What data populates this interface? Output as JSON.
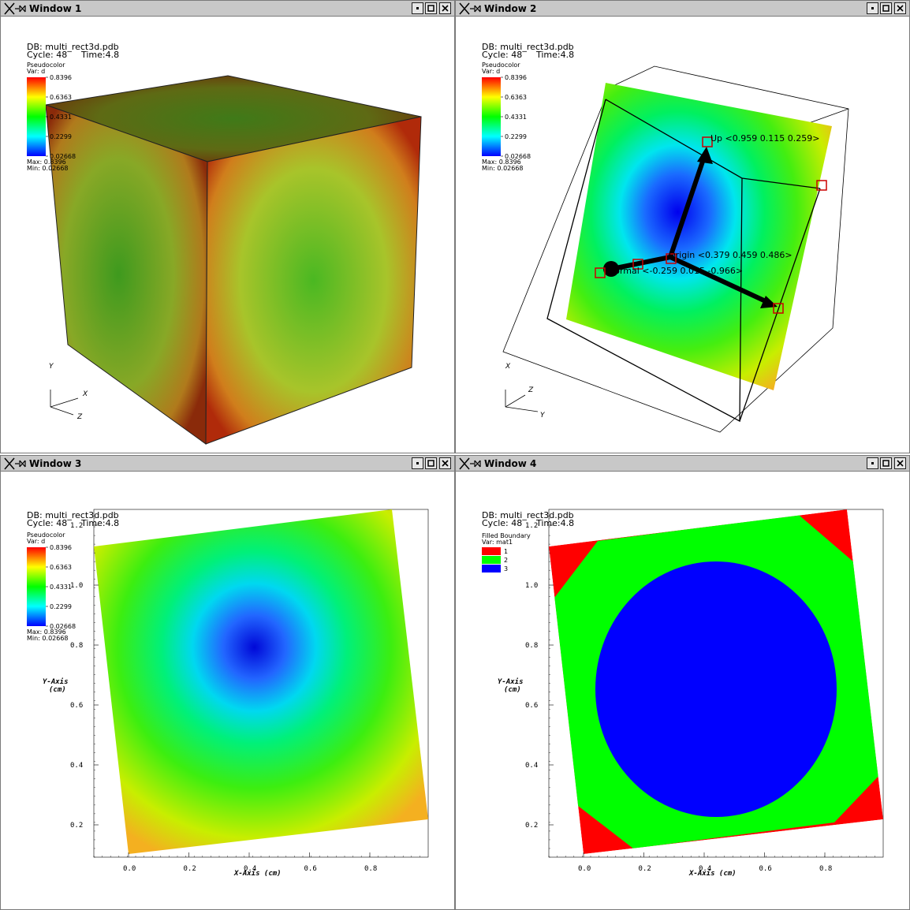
{
  "windows": [
    {
      "title": "Window 1"
    },
    {
      "title": "Window 2"
    },
    {
      "title": "Window 3"
    },
    {
      "title": "Window 4"
    }
  ],
  "buttons": {
    "minimize": "minimize",
    "maximize": "maximize",
    "close": "close"
  },
  "info": {
    "db": "DB: multi_rect3d.pdb",
    "cycle": "Cycle: 48",
    "time": "Time:4.8"
  },
  "legend_pc": {
    "title": "Pseudocolor",
    "var": "Var: d",
    "ticks": [
      "0.8396",
      "0.6363",
      "0.4331",
      "0.2299",
      "0.02668"
    ],
    "max": "Max: 0.8396",
    "min": "Min: 0.02668"
  },
  "legend_fb": {
    "title": "Filled Boundary",
    "var": "Var: mat1",
    "entries": [
      {
        "label": "1",
        "color": "#ff0000"
      },
      {
        "label": "2",
        "color": "#00ff00"
      },
      {
        "label": "3",
        "color": "#0000ff"
      }
    ]
  },
  "triad": {
    "w1": {
      "a": "Y",
      "b": "X",
      "c": "Z"
    },
    "w2": {
      "a": "X",
      "b": "Z",
      "c": "Y"
    }
  },
  "slice_tool": {
    "up": "Up <0.959 0.115 0.259>",
    "origin": "Origin <0.379 0.459 0.486>",
    "normal": "Normal <-0.259 0.015 -0.966>"
  },
  "axes2d": {
    "xlabel": "X-Axis (cm)",
    "ylabel": "Y-Axis",
    "yunit": "(cm)",
    "xticks": [
      "0.0",
      "0.2",
      "0.4",
      "0.6",
      "0.8"
    ],
    "yticks": [
      "0.2",
      "0.4",
      "0.6",
      "0.8",
      "1.0",
      "1.2"
    ]
  },
  "colors": {
    "titlebar": "#c8c8c8",
    "mat1": "#ff0000",
    "mat2": "#00ff00",
    "mat3": "#0000ff",
    "plane_edge": "#eebb22"
  }
}
